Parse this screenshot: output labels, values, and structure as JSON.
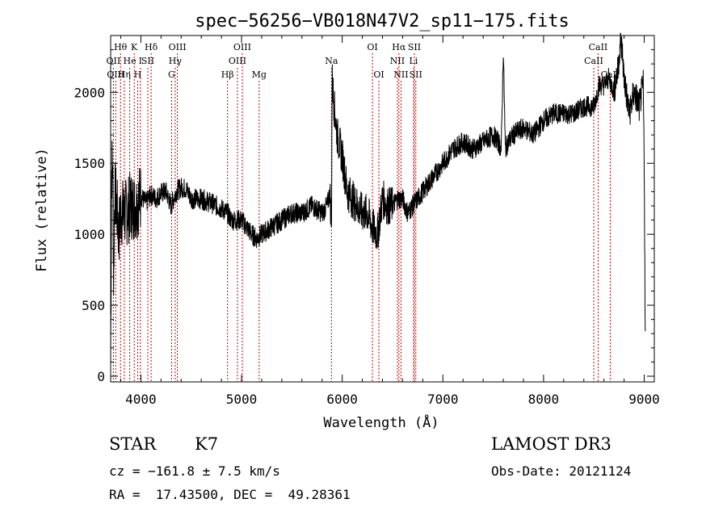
{
  "chart_data": {
    "type": "line",
    "title": "spec−56256−VB018N47V2_sp11−175.fits",
    "xlabel": "Wavelength (Å)",
    "ylabel": "Flux (relative)",
    "xlim": [
      3700,
      9100
    ],
    "ylim": [
      -40,
      2400
    ],
    "xticks": [
      4000,
      5000,
      6000,
      7000,
      8000,
      9000
    ],
    "yticks": [
      0,
      500,
      1000,
      1500,
      2000
    ],
    "series": [
      {
        "name": "flux",
        "x": [
          3700,
          3710,
          3720,
          3730,
          3740,
          3760,
          3780,
          3800,
          3850,
          3900,
          3950,
          4000,
          4050,
          4100,
          4150,
          4200,
          4250,
          4300,
          4350,
          4400,
          4450,
          4500,
          4600,
          4700,
          4800,
          4860,
          4900,
          5000,
          5100,
          5150,
          5200,
          5300,
          5400,
          5500,
          5600,
          5700,
          5800,
          5850,
          5880,
          5893,
          5900,
          5920,
          5950,
          6000,
          6050,
          6100,
          6150,
          6200,
          6250,
          6300,
          6350,
          6400,
          6450,
          6500,
          6550,
          6600,
          6650,
          6700,
          6750,
          6800,
          6900,
          7000,
          7100,
          7200,
          7300,
          7400,
          7500,
          7550,
          7580,
          7600,
          7620,
          7650,
          7700,
          7800,
          7900,
          8000,
          8100,
          8200,
          8300,
          8400,
          8500,
          8550,
          8600,
          8650,
          8700,
          8720,
          8740,
          8760,
          8780,
          8800,
          8850,
          8900,
          8950,
          8990,
          9000,
          9010
        ],
        "y": [
          100,
          1450,
          1500,
          700,
          1300,
          1200,
          1000,
          1150,
          1150,
          1200,
          1200,
          1270,
          1220,
          1280,
          1250,
          1290,
          1300,
          1200,
          1300,
          1330,
          1320,
          1250,
          1250,
          1220,
          1180,
          1150,
          1100,
          1100,
          1000,
          970,
          1000,
          1050,
          1100,
          1150,
          1150,
          1200,
          1150,
          1200,
          1300,
          1000,
          2100,
          1900,
          1700,
          1550,
          1300,
          1250,
          1200,
          1150,
          1150,
          1050,
          1000,
          1250,
          1200,
          1200,
          1250,
          1250,
          1150,
          1200,
          1250,
          1300,
          1400,
          1500,
          1600,
          1650,
          1600,
          1650,
          1700,
          1650,
          1600,
          2300,
          1600,
          1650,
          1700,
          1750,
          1700,
          1800,
          1850,
          1850,
          1850,
          1900,
          1900,
          2050,
          2050,
          2100,
          2000,
          2100,
          2150,
          2350,
          2300,
          2100,
          1850,
          2000,
          1900,
          2050,
          1500,
          300
        ]
      }
    ],
    "lines": [
      {
        "label": "Hθ",
        "x": 3798,
        "row": 1
      },
      {
        "label": "OII",
        "x": 3727,
        "row": 2
      },
      {
        "label": "OIII",
        "x": 3750,
        "row": 3
      },
      {
        "label": "He",
        "x": 3889,
        "row": 2
      },
      {
        "label": "Hη",
        "x": 3835,
        "row": 3
      },
      {
        "label": "K",
        "x": 3934,
        "row": 1
      },
      {
        "label": "SII",
        "x": 4069,
        "row": 2
      },
      {
        "label": "I",
        "x": 3995,
        "row": 2
      },
      {
        "label": "H",
        "x": 3969,
        "row": 3
      },
      {
        "label": "Hδ",
        "x": 4102,
        "row": 1
      },
      {
        "label": "OIII",
        "x": 4363,
        "row": 1
      },
      {
        "label": "Hγ",
        "x": 4341,
        "row": 2
      },
      {
        "label": "G",
        "x": 4305,
        "row": 3
      },
      {
        "label": "Hβ",
        "x": 4861,
        "row": 3
      },
      {
        "label": "OIII",
        "x": 5007,
        "row": 1
      },
      {
        "label": "OIII",
        "x": 4959,
        "row": 2
      },
      {
        "label": "Mg",
        "x": 5175,
        "row": 3
      },
      {
        "label": "Na",
        "x": 5893,
        "row": 2
      },
      {
        "label": "OI",
        "x": 6300,
        "row": 1
      },
      {
        "label": "OI",
        "x": 6364,
        "row": 3
      },
      {
        "label": "Hα",
        "x": 6563,
        "row": 1
      },
      {
        "label": "NII",
        "x": 6548,
        "row": 2
      },
      {
        "label": "NII",
        "x": 6584,
        "row": 3
      },
      {
        "label": "SII",
        "x": 6717,
        "row": 1
      },
      {
        "label": "Li",
        "x": 6708,
        "row": 2
      },
      {
        "label": "SII",
        "x": 6731,
        "row": 3
      },
      {
        "label": "CaII",
        "x": 8542,
        "row": 1
      },
      {
        "label": "CaII",
        "x": 8498,
        "row": 2
      },
      {
        "label": "CaII",
        "x": 8662,
        "row": 3
      }
    ],
    "colors": {
      "axis": "#000000",
      "trace": "#000000",
      "emission_line": "#cc0000"
    }
  },
  "info": {
    "class_label": "STAR",
    "subclass": "K7",
    "survey": "LAMOST DR3",
    "cz": "cz = −161.8 ± 7.5 km/s",
    "obs_date": "Obs-Date: 20121124",
    "radec": "RA =  17.43500, DEC =  49.28361"
  }
}
